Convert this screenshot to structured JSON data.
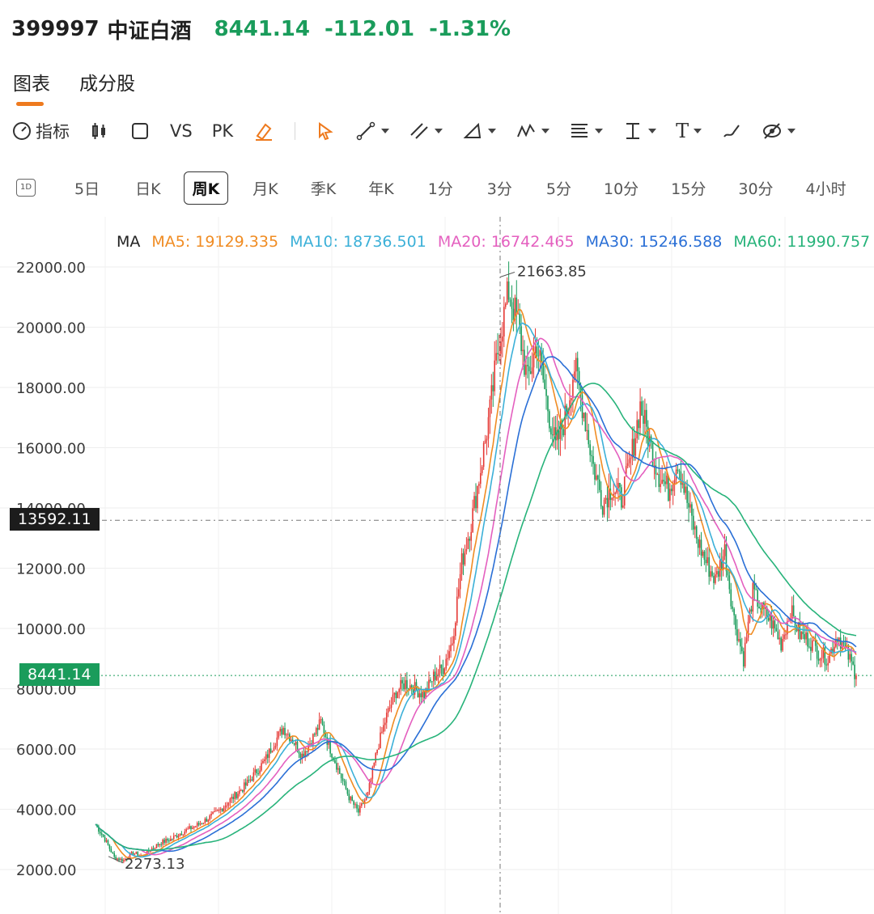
{
  "header": {
    "code": "399997",
    "name": "中证白酒",
    "price": "8441.14",
    "change": "-112.01",
    "change_pct": "-1.31%",
    "quote_color": "#1a9c5b"
  },
  "tabs": [
    {
      "label": "图表",
      "active": true
    },
    {
      "label": "成分股",
      "active": false
    }
  ],
  "toolbar": {
    "indicator_label": "指标",
    "vs_label": "VS",
    "pk_label": "PK",
    "icons": [
      "gauge-icon",
      "candlestick-icon",
      "square-icon",
      "highlighter-icon",
      "cursor-icon",
      "line-tool-icon",
      "channel-tool-icon",
      "triangle-tool-icon",
      "wave-tool-icon",
      "fibonacci-icon",
      "measure-icon",
      "text-tool-icon",
      "brush-icon",
      "eye-icon"
    ],
    "text_tool_label": "T",
    "accent_color": "#ee7a1e"
  },
  "periods": {
    "icon": "1D",
    "items": [
      "5日",
      "日K",
      "周K",
      "月K",
      "季K",
      "年K",
      "1分",
      "3分",
      "5分",
      "10分",
      "15分",
      "30分",
      "4小时"
    ],
    "active": "周K"
  },
  "legend": {
    "ma_label": "MA",
    "items": [
      {
        "text": "MA5: 19129.335",
        "color": "#f08c23"
      },
      {
        "text": "MA10: 18736.501",
        "color": "#3bb0d8"
      },
      {
        "text": "MA20: 16742.465",
        "color": "#e45fbf"
      },
      {
        "text": "MA30: 15246.588",
        "color": "#2a6fd6"
      },
      {
        "text": "MA60: 11990.757",
        "color": "#27b37a"
      }
    ]
  },
  "chart_data": {
    "type": "line",
    "title": "",
    "y_ticks": [
      "22000.00",
      "20000.00",
      "18000.00",
      "16000.00",
      "14000.00",
      "12000.00",
      "10000.00",
      "8000.00",
      "6000.00",
      "4000.00",
      "2000.00"
    ],
    "ylim": [
      1000,
      23500
    ],
    "grid": true,
    "max_label": "21663.85",
    "min_label": "2273.13",
    "crosshair_value": "13592.11",
    "last_price_label": "8441.14",
    "up_color": "#e53935",
    "down_color": "#1a9c5b",
    "close_series": [
      3500,
      3000,
      2400,
      2300,
      2550,
      2450,
      2700,
      2900,
      3000,
      3200,
      3350,
      3500,
      3700,
      3900,
      4200,
      4500,
      4800,
      5200,
      5600,
      6200,
      6700,
      6300,
      5800,
      6300,
      6900,
      6000,
      5200,
      4400,
      3900,
      4500,
      6000,
      7100,
      7900,
      8200,
      8000,
      7800,
      8400,
      8700,
      9600,
      12200,
      13500,
      15300,
      17200,
      19600,
      21200,
      20100,
      18200,
      19500,
      17600,
      16000,
      17000,
      18700,
      17200,
      15400,
      14200,
      14700,
      14300,
      15600,
      17400,
      16200,
      15100,
      14600,
      15600,
      14200,
      13000,
      12200,
      11600,
      12600,
      10300,
      9000,
      11200,
      10600,
      10200,
      9500,
      10600,
      9800,
      9600,
      9200,
      9000,
      9800,
      9200,
      8441
    ],
    "series": [
      {
        "name": "MA5",
        "color": "#f08c23",
        "window": 2
      },
      {
        "name": "MA10",
        "color": "#3bb0d8",
        "window": 3
      },
      {
        "name": "MA20",
        "color": "#e45fbf",
        "window": 5
      },
      {
        "name": "MA30",
        "color": "#2a6fd6",
        "window": 7
      },
      {
        "name": "MA60",
        "color": "#27b37a",
        "window": 12
      }
    ]
  }
}
